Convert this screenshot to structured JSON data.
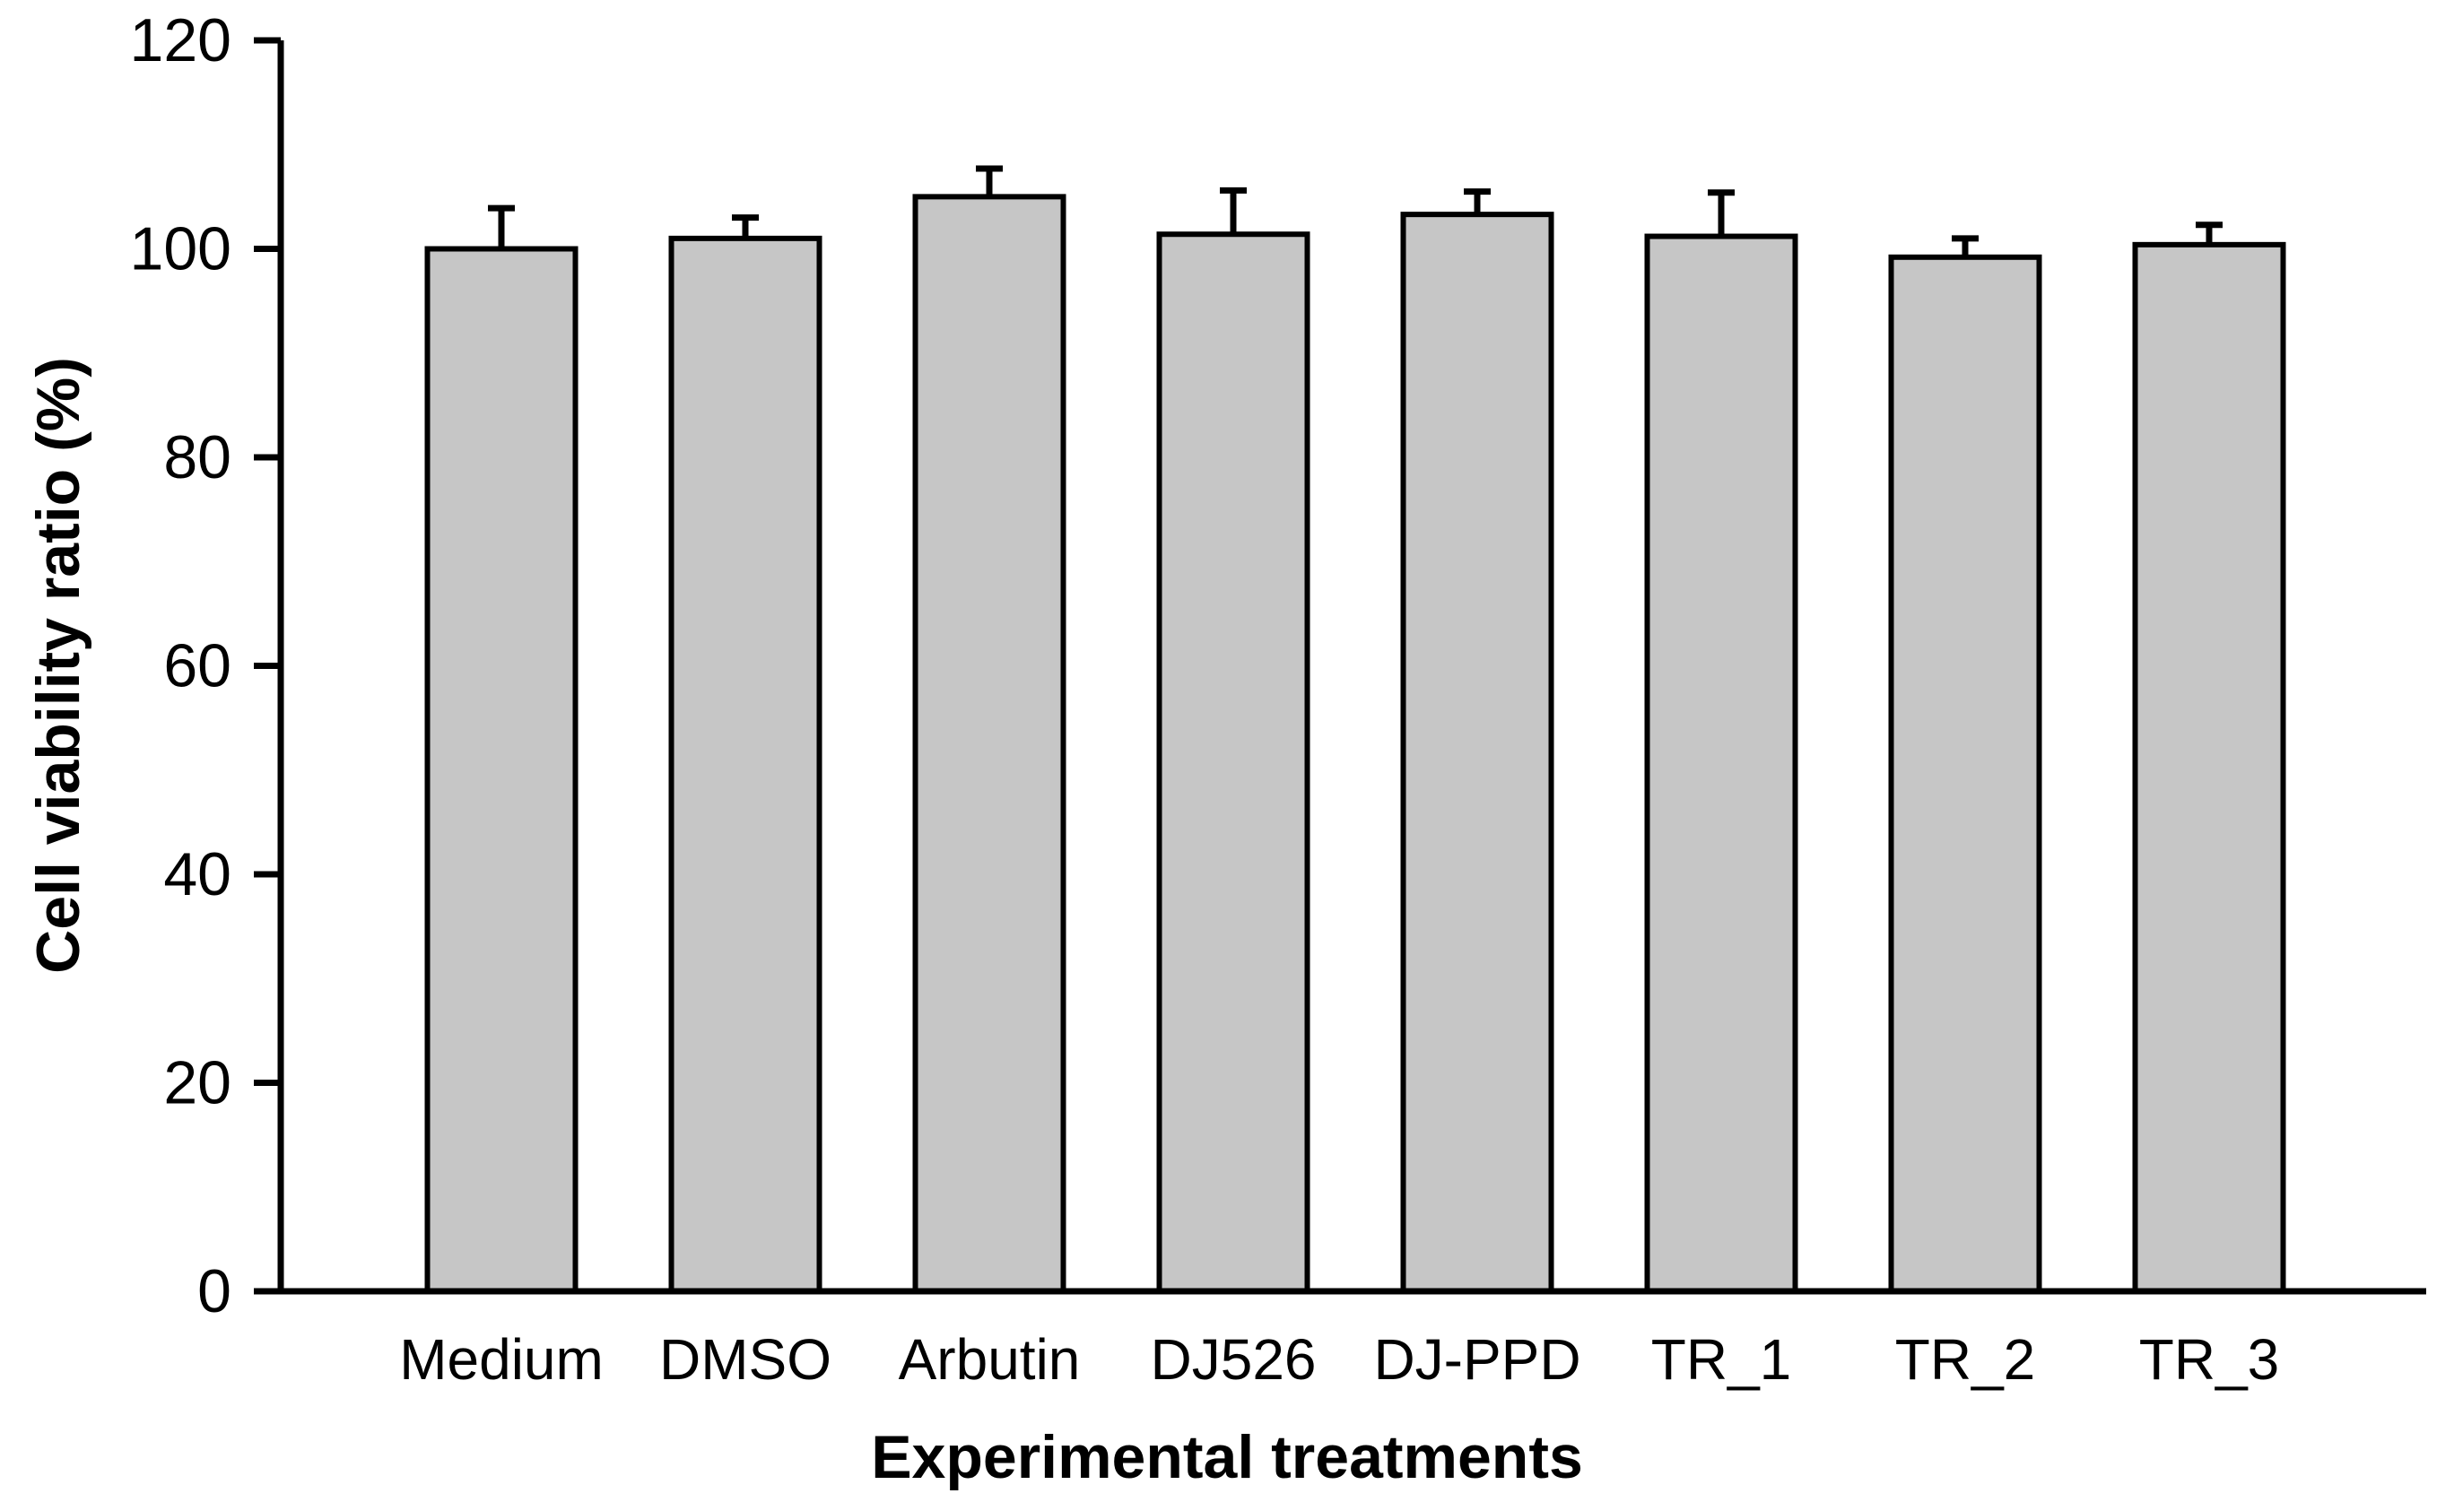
{
  "figure": {
    "background": "#ffffff"
  },
  "chart_data": {
    "type": "bar",
    "title": "",
    "xlabel": "Experimental treatments",
    "ylabel": "Cell viability ratio (%)",
    "categories": [
      "Medium",
      "DMSO",
      "Arbutin",
      "DJ526",
      "DJ-PPD",
      "TR_1",
      "TR_2",
      "TR_3"
    ],
    "values": [
      100.0,
      101.0,
      105.0,
      101.4,
      103.3,
      101.2,
      99.2,
      100.4
    ],
    "errors_plus": [
      3.9,
      2.0,
      2.7,
      4.2,
      2.2,
      4.2,
      1.8,
      1.9
    ],
    "ylim": [
      0,
      120
    ],
    "yticks": [
      0,
      20,
      40,
      60,
      80,
      100,
      120
    ],
    "ytick_labels": [
      "0",
      "20",
      "40",
      "60",
      "80",
      "100",
      "120"
    ],
    "grid": false,
    "legend": null,
    "bar_fill": "#c6c6c6",
    "bar_stroke": "#000000",
    "error_color": "#000000",
    "axis_color": "#000000"
  }
}
